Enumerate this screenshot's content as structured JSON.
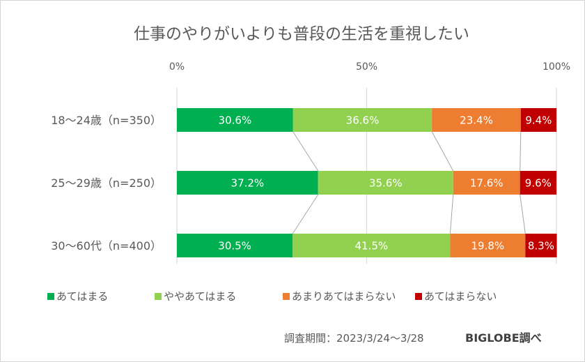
{
  "chart_data": {
    "type": "bar",
    "orientation": "horizontal",
    "stacked": "100%",
    "title": "仕事のやりがいよりも普段の生活を重視したい",
    "xlabel": "",
    "ylabel": "",
    "xlim": [
      0,
      100
    ],
    "x_ticks": [
      "0%",
      "50%",
      "100%"
    ],
    "grid": true,
    "series_lines": true,
    "legend_position": "bottom",
    "categories": [
      "18〜24歳（n=350）",
      "25〜29歳（n=250）",
      "30〜60代（n=400）"
    ],
    "series": [
      {
        "name": "あてはまる",
        "color": "#00b050",
        "values": [
          30.6,
          37.2,
          30.5
        ],
        "labels": [
          "30.6%",
          "37.2%",
          "30.5%"
        ]
      },
      {
        "name": "ややあてはまる",
        "color": "#92d050",
        "values": [
          36.6,
          35.6,
          41.5
        ],
        "labels": [
          "36.6%",
          "35.6%",
          "41.5%"
        ]
      },
      {
        "name": "あまりあてはまらない",
        "color": "#ed7d31",
        "values": [
          23.4,
          17.6,
          19.8
        ],
        "labels": [
          "23.4%",
          "17.6%",
          "19.8%"
        ]
      },
      {
        "name": "あてはまらない",
        "color": "#c00000",
        "values": [
          9.4,
          9.6,
          8.3
        ],
        "labels": [
          "9.4%",
          "9.6%",
          "8.3%"
        ]
      }
    ]
  },
  "footer": {
    "period": "調査期間：2023/3/24〜3/28",
    "source": "BIGLOBE調べ"
  }
}
